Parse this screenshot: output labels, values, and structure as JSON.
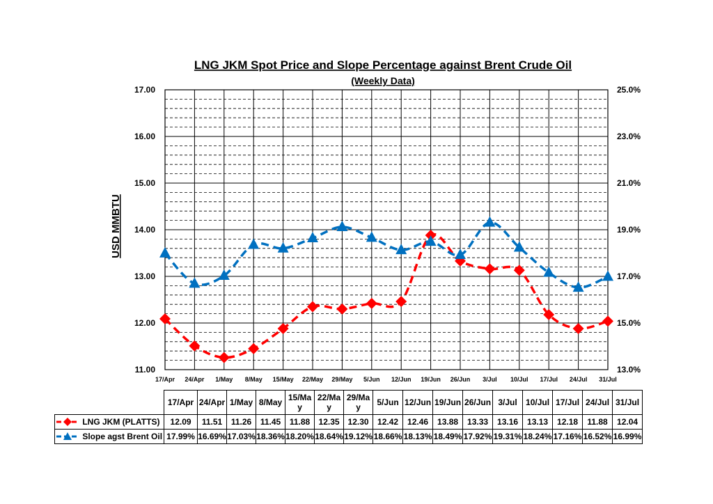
{
  "chart_data": {
    "type": "line",
    "title": "LNG JKM Spot Price and Slope Percentage against Brent Crude Oil",
    "subtitle": "(Weekly Data)",
    "ylabel": "USD MMBTU",
    "y2label": "",
    "categories": [
      "17/Apr",
      "24/Apr",
      "1/May",
      "8/May",
      "15/May",
      "22/May",
      "29/May",
      "5/Jun",
      "12/Jun",
      "19/Jun",
      "26/Jun",
      "3/Jul",
      "10/Jul",
      "17/Jul",
      "24/Jul",
      "31/Jul"
    ],
    "table_headers": [
      "17/Apr",
      "24/Apr",
      "1/May",
      "8/May",
      "15/Ma y",
      "22/Ma y",
      "29/Ma y",
      "5/Jun",
      "12/Jun",
      "19/Jun",
      "26/Jun",
      "3/Jul",
      "10/Jul",
      "17/Jul",
      "24/Jul",
      "31/Jul"
    ],
    "ylim": [
      11.0,
      17.0
    ],
    "y2lim": [
      13.0,
      25.0
    ],
    "yticks": [
      "11.00",
      "12.00",
      "13.00",
      "14.00",
      "15.00",
      "16.00",
      "17.00"
    ],
    "y2ticks": [
      "13.0%",
      "15.0%",
      "17.0%",
      "19.0%",
      "21.0%",
      "23.0%",
      "25.0%"
    ],
    "grid": true,
    "legend_placement": "table-bottom",
    "series": [
      {
        "name": "LNG JKM (PLATTS)",
        "axis": "left",
        "color": "#ff0000",
        "marker": "diamond",
        "values": [
          12.09,
          11.51,
          11.26,
          11.45,
          11.88,
          12.35,
          12.3,
          12.42,
          12.46,
          13.88,
          13.33,
          13.16,
          13.13,
          12.18,
          11.88,
          12.04
        ],
        "labels": [
          "12.09",
          "11.51",
          "11.26",
          "11.45",
          "11.88",
          "12.35",
          "12.30",
          "12.42",
          "12.46",
          "13.88",
          "13.33",
          "13.16",
          "13.13",
          "12.18",
          "11.88",
          "12.04"
        ]
      },
      {
        "name": "Slope agst Brent Oil",
        "axis": "right",
        "color": "#0070c0",
        "marker": "triangle",
        "values": [
          17.99,
          16.69,
          17.03,
          18.36,
          18.2,
          18.64,
          19.12,
          18.66,
          18.13,
          18.49,
          17.92,
          19.31,
          18.24,
          17.16,
          16.52,
          16.99
        ],
        "labels": [
          "17.99%",
          "16.69%",
          "17.03%",
          "18.36%",
          "18.20%",
          "18.64%",
          "19.12%",
          "18.66%",
          "18.13%",
          "18.49%",
          "17.92%",
          "19.31%",
          "18.24%",
          "17.16%",
          "16.52%",
          "16.99%"
        ]
      }
    ]
  }
}
